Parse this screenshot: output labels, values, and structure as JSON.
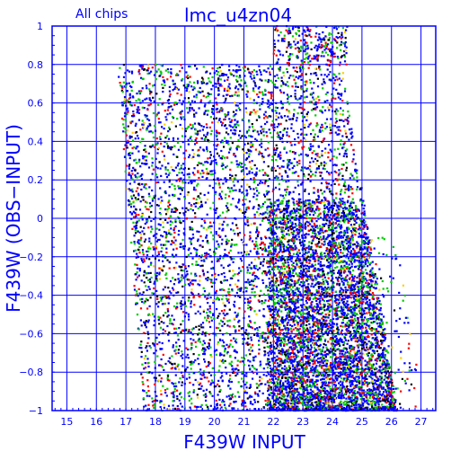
{
  "chart_data": {
    "type": "scatter",
    "corner_label": "All chips",
    "title": "lmc_u4zn04",
    "xlabel": "F439W INPUT",
    "ylabel": "F439W (OBS−INPUT)",
    "xlim": [
      14.5,
      27.5
    ],
    "ylim": [
      -1,
      1
    ],
    "x_ticks": [
      "15",
      "16",
      "17",
      "18",
      "19",
      "20",
      "21",
      "22",
      "23",
      "24",
      "25",
      "26",
      "27"
    ],
    "y_ticks": [
      "−1",
      "−0.8",
      "−0.6",
      "−0.4",
      "−0.2",
      "0",
      "0.2",
      "0.4",
      "0.6",
      "0.8",
      "1"
    ],
    "grid": true,
    "colors": {
      "axes": "#0000ff",
      "grid": "#0000ff",
      "text": "#0000ff",
      "points": [
        "#0000ff",
        "#00cc00",
        "#ff0000",
        "#000000",
        "#ffd000"
      ]
    },
    "distribution": {
      "description": "Dense cloud of artificial-star test results; occupied region is a slanted band",
      "x_range_at_top": [
        16.7,
        24.3
      ],
      "x_range_at_bottom": [
        17.6,
        26.2
      ],
      "dense_region_x": [
        21.5,
        26
      ],
      "dense_region_y": [
        -1,
        0.1
      ],
      "sparse_spillover_top_x": [
        22,
        24.5
      ],
      "sparse_spillover_top_y": [
        0.8,
        1.0
      ]
    }
  }
}
